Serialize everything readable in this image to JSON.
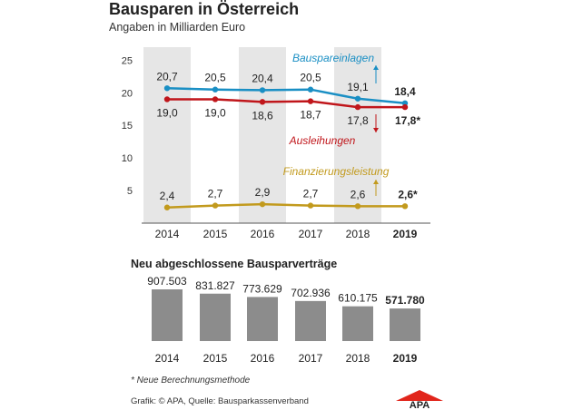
{
  "title": "Bausparen in Österreich",
  "subtitle": "Angaben in Milliarden Euro",
  "footnote": "* Neue Berechnungsmethode",
  "source": "Grafik: © APA, Quelle: Bausparkassenverband",
  "logo_text": "APA",
  "colors": {
    "bausparen": "#1a8fc4",
    "ausleihungen": "#c0161b",
    "finanzierung": "#c29a1d",
    "band": "#e6e6e6",
    "bar": "#8c8c8c",
    "axis": "#555555",
    "logo": "#e1251b"
  },
  "chart_data": [
    {
      "type": "line",
      "categories": [
        "2014",
        "2015",
        "2016",
        "2017",
        "2018",
        "2019"
      ],
      "bold_category": "2019",
      "yticks": [
        "5",
        "10",
        "15",
        "20",
        "25"
      ],
      "ylim": [
        0,
        27
      ],
      "series": [
        {
          "name": "Bauspareinlagen",
          "color_key": "bausparen",
          "values": [
            20.7,
            20.5,
            20.4,
            20.5,
            19.1,
            18.4
          ],
          "labels": [
            "20,7",
            "20,5",
            "20,4",
            "20,5",
            "19,1",
            "18,4"
          ],
          "label_position": "above"
        },
        {
          "name": "Ausleihungen",
          "color_key": "ausleihungen",
          "values": [
            19.0,
            19.0,
            18.6,
            18.7,
            17.8,
            17.8
          ],
          "labels": [
            "19,0",
            "19,0",
            "18,6",
            "18,7",
            "17,8",
            "17,8*"
          ],
          "label_position": "below"
        },
        {
          "name": "Finanzierungsleistung",
          "color_key": "finanzierung",
          "values": [
            2.4,
            2.7,
            2.9,
            2.7,
            2.6,
            2.6
          ],
          "labels": [
            "2,4",
            "2,7",
            "2,9",
            "2,7",
            "2,6",
            "2,6*"
          ],
          "label_position": "above"
        }
      ]
    },
    {
      "type": "bar",
      "title": "Neu abgeschlossene Bausparverträge",
      "categories": [
        "2014",
        "2015",
        "2016",
        "2017",
        "2018",
        "2019"
      ],
      "bold_category": "2019",
      "values": [
        907503,
        831827,
        773629,
        702936,
        610175,
        571780
      ],
      "labels": [
        "907.503",
        "831.827",
        "773.629",
        "702.936",
        "610.175",
        "571.780"
      ],
      "ylim": [
        0,
        907503
      ]
    }
  ]
}
